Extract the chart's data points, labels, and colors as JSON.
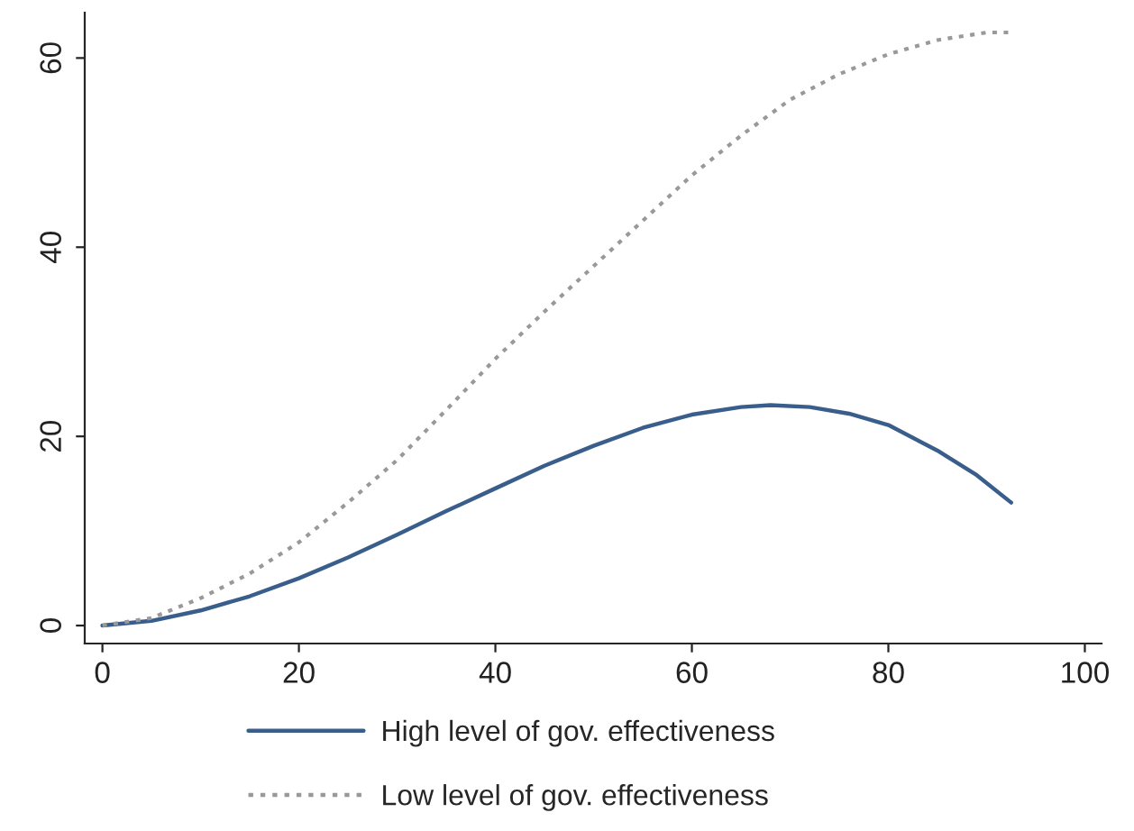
{
  "chart_data": {
    "type": "line",
    "xlim": [
      -1.8,
      101.7
    ],
    "ylim": [
      -1.9,
      64.8
    ],
    "xticks": [
      0,
      20,
      40,
      60,
      80,
      100
    ],
    "yticks": [
      0,
      20,
      40,
      60
    ],
    "grid": false,
    "legend": "bottom",
    "series": [
      {
        "name": "High level of gov. effectiveness",
        "color": "#3a5e8c",
        "line_style": "solid",
        "x": [
          0,
          5,
          10,
          15,
          20,
          25,
          30,
          35,
          40,
          45,
          50,
          55,
          60,
          65,
          68,
          72,
          76,
          80,
          85,
          89,
          92.5
        ],
        "values": [
          0,
          0.5,
          1.6,
          3.1,
          5.0,
          7.2,
          9.6,
          12.1,
          14.5,
          16.9,
          19.0,
          20.9,
          22.3,
          23.1,
          23.3,
          23.1,
          22.4,
          21.2,
          18.5,
          15.9,
          13.0
        ]
      },
      {
        "name": "Low level of gov. effectiveness",
        "color": "#999999",
        "line_style": "dotted",
        "x": [
          0,
          5,
          10,
          15,
          20,
          25,
          30,
          35,
          40,
          45,
          50,
          55,
          60,
          65,
          70,
          75,
          80,
          85,
          90,
          92.5
        ],
        "values": [
          0,
          0.8,
          2.9,
          5.5,
          8.8,
          13.0,
          17.5,
          22.8,
          28.2,
          33.2,
          38.0,
          42.8,
          47.6,
          51.8,
          55.6,
          58.3,
          60.4,
          61.9,
          62.7,
          62.7
        ]
      }
    ]
  }
}
